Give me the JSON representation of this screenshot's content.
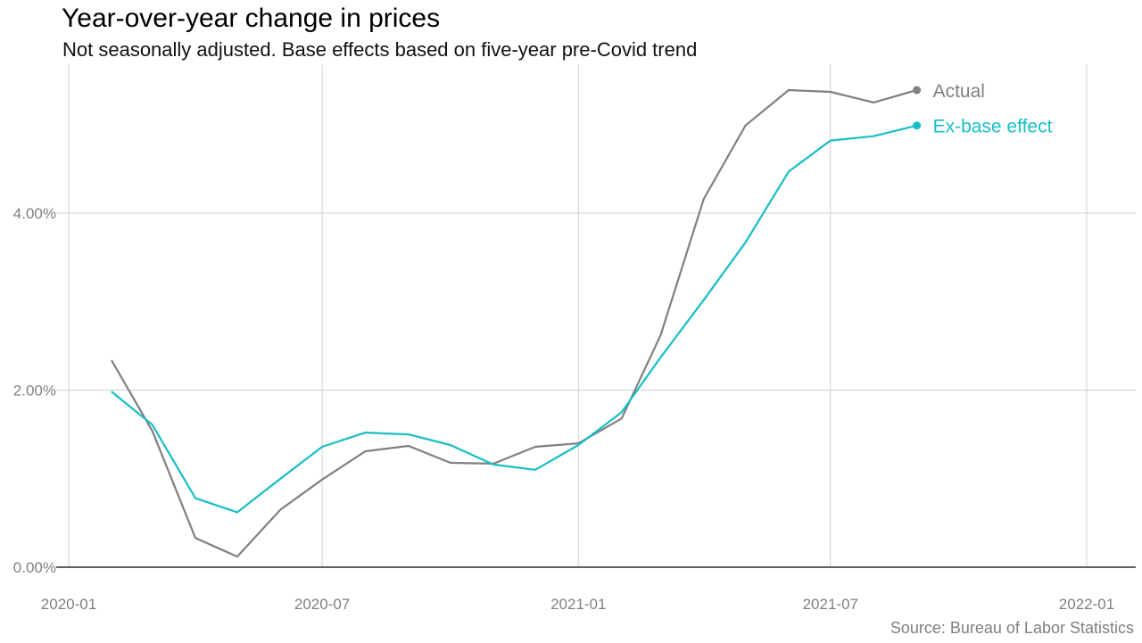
{
  "chart_data": {
    "type": "line",
    "title": "Year-over-year change in prices",
    "subtitle": "Not seasonally adjusted. Base effects based on five-year pre-Covid trend",
    "caption": "Source: Bureau of Labor Statistics",
    "xlabel": "",
    "ylabel": "",
    "x_type": "date",
    "xlim": [
      "2020-01-01",
      "2022-01-01"
    ],
    "ylim": [
      0,
      5.4
    ],
    "x_ticks": [
      {
        "date": "2020-01-01",
        "label": "2020-01"
      },
      {
        "date": "2020-07-01",
        "label": "2020-07"
      },
      {
        "date": "2021-01-01",
        "label": "2021-01"
      },
      {
        "date": "2021-07-01",
        "label": "2021-07"
      },
      {
        "date": "2022-01-01",
        "label": "2022-01"
      }
    ],
    "y_ticks": [
      {
        "value": 0,
        "label": "0.00%"
      },
      {
        "value": 2,
        "label": "2.00%"
      },
      {
        "value": 4,
        "label": "4.00%"
      }
    ],
    "grid": true,
    "legend": "direct labels at line ends",
    "x": [
      "2020-02-01",
      "2020-03-01",
      "2020-04-01",
      "2020-05-01",
      "2020-06-01",
      "2020-07-01",
      "2020-08-01",
      "2020-09-01",
      "2020-10-01",
      "2020-11-01",
      "2020-12-01",
      "2021-01-01",
      "2021-02-01",
      "2021-03-01",
      "2021-04-01",
      "2021-05-01",
      "2021-06-01",
      "2021-07-01",
      "2021-08-01",
      "2021-09-01"
    ],
    "series": [
      {
        "name": "Actual",
        "color": "#808080",
        "values": [
          2.33,
          1.54,
          0.33,
          0.12,
          0.65,
          0.99,
          1.31,
          1.37,
          1.18,
          1.17,
          1.36,
          1.4,
          1.68,
          2.62,
          4.16,
          4.99,
          5.39,
          5.37,
          5.25,
          5.39
        ]
      },
      {
        "name": "Ex-base effect",
        "color": "#17bec6",
        "values": [
          1.98,
          1.61,
          0.78,
          0.62,
          1.0,
          1.36,
          1.52,
          1.5,
          1.38,
          1.16,
          1.1,
          1.38,
          1.75,
          2.37,
          3.02,
          3.67,
          4.47,
          4.82,
          4.87,
          4.99
        ]
      }
    ]
  }
}
